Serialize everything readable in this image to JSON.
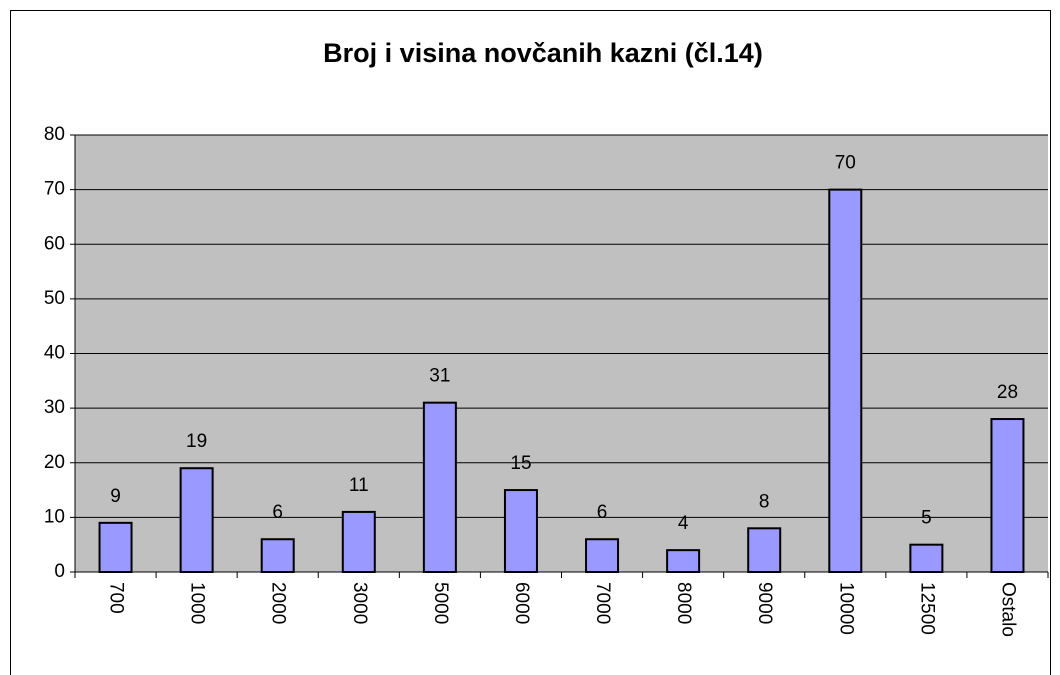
{
  "chart_data": {
    "type": "bar",
    "title": "Broj i visina novčanih kazni (čl.14)",
    "categories": [
      "700",
      "1000",
      "2000",
      "3000",
      "5000",
      "6000",
      "7000",
      "8000",
      "9000",
      "10000",
      "12500",
      "Ostalo"
    ],
    "values": [
      9,
      19,
      6,
      11,
      31,
      15,
      6,
      4,
      8,
      70,
      5,
      28
    ],
    "color": "#9999ff",
    "plot_background": "#c0c0c0",
    "ylim": [
      0,
      80
    ],
    "yticks": [
      0,
      10,
      20,
      30,
      40,
      50,
      60,
      70,
      80
    ],
    "grid": true
  }
}
